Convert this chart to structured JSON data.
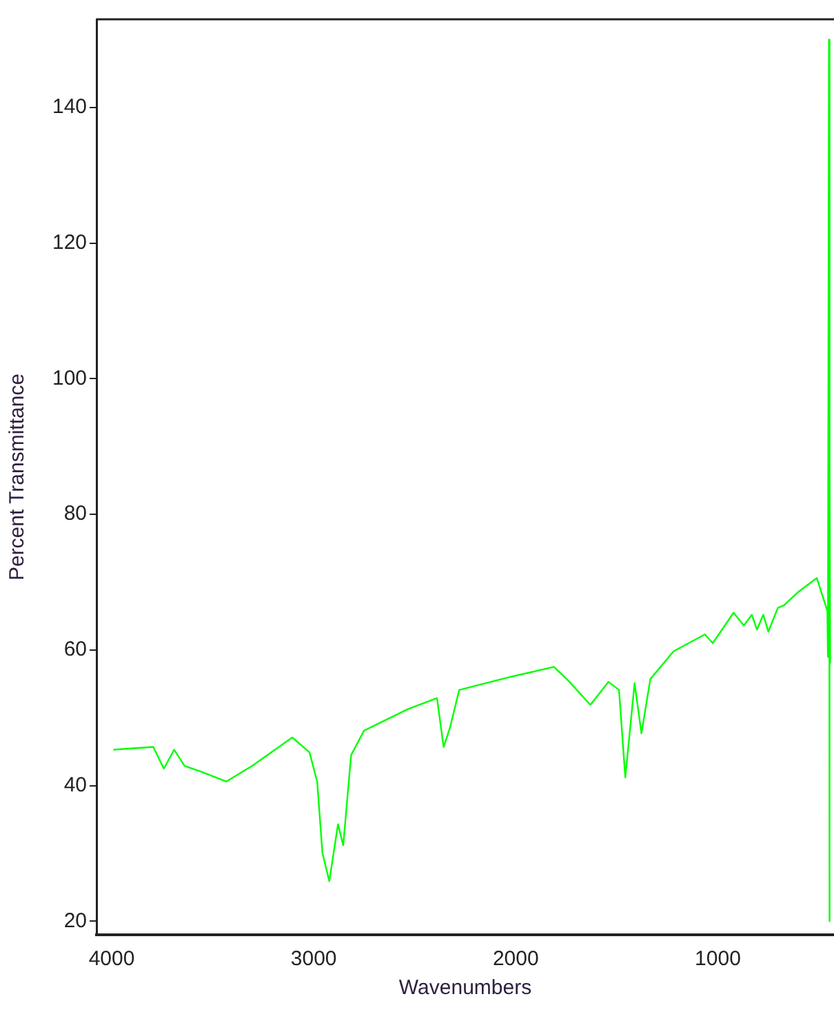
{
  "chart_data": {
    "type": "line",
    "xlabel": "Wavenumbers",
    "ylabel": "Percent Transmittance",
    "x": [
      3992,
      3794,
      3742,
      3691,
      3639,
      3562,
      3433,
      3305,
      3106,
      3021,
      2983,
      2957,
      2923,
      2880,
      2854,
      2815,
      2751,
      2532,
      2390,
      2357,
      2326,
      2280,
      2017,
      1811,
      1734,
      1631,
      1541,
      1489,
      1458,
      1412,
      1378,
      1334,
      1219,
      1064,
      1025,
      922,
      871,
      832,
      806,
      775,
      750,
      703,
      672,
      600,
      510,
      458,
      455,
      450,
      448,
      446,
      444
    ],
    "series": [
      {
        "color": "#00ff00",
        "values": [
          45.3,
          45.7,
          42.5,
          45.3,
          42.9,
          42.1,
          40.6,
          42.9,
          47.1,
          44.9,
          40.6,
          30.1,
          25.9,
          34.3,
          31.2,
          44.5,
          48.1,
          51.3,
          52.9,
          45.7,
          48.5,
          54.1,
          56.1,
          57.5,
          55.3,
          51.9,
          55.3,
          54.1,
          41.2,
          55.1,
          47.7,
          55.7,
          59.8,
          62.3,
          61.0,
          65.5,
          63.6,
          65.2,
          63.0,
          65.2,
          62.7,
          66.2,
          66.6,
          68.6,
          70.6,
          65.8,
          59,
          150,
          20,
          88,
          58
        ]
      }
    ],
    "xlim": [
      4075,
      425
    ],
    "ylim": [
      18,
      153
    ],
    "xticks": [
      4000,
      3000,
      2000,
      1000
    ],
    "yticks": [
      20,
      40,
      60,
      80,
      100,
      120,
      140
    ],
    "grid": false,
    "legend": false,
    "marker": "none",
    "line_style": "solid"
  }
}
